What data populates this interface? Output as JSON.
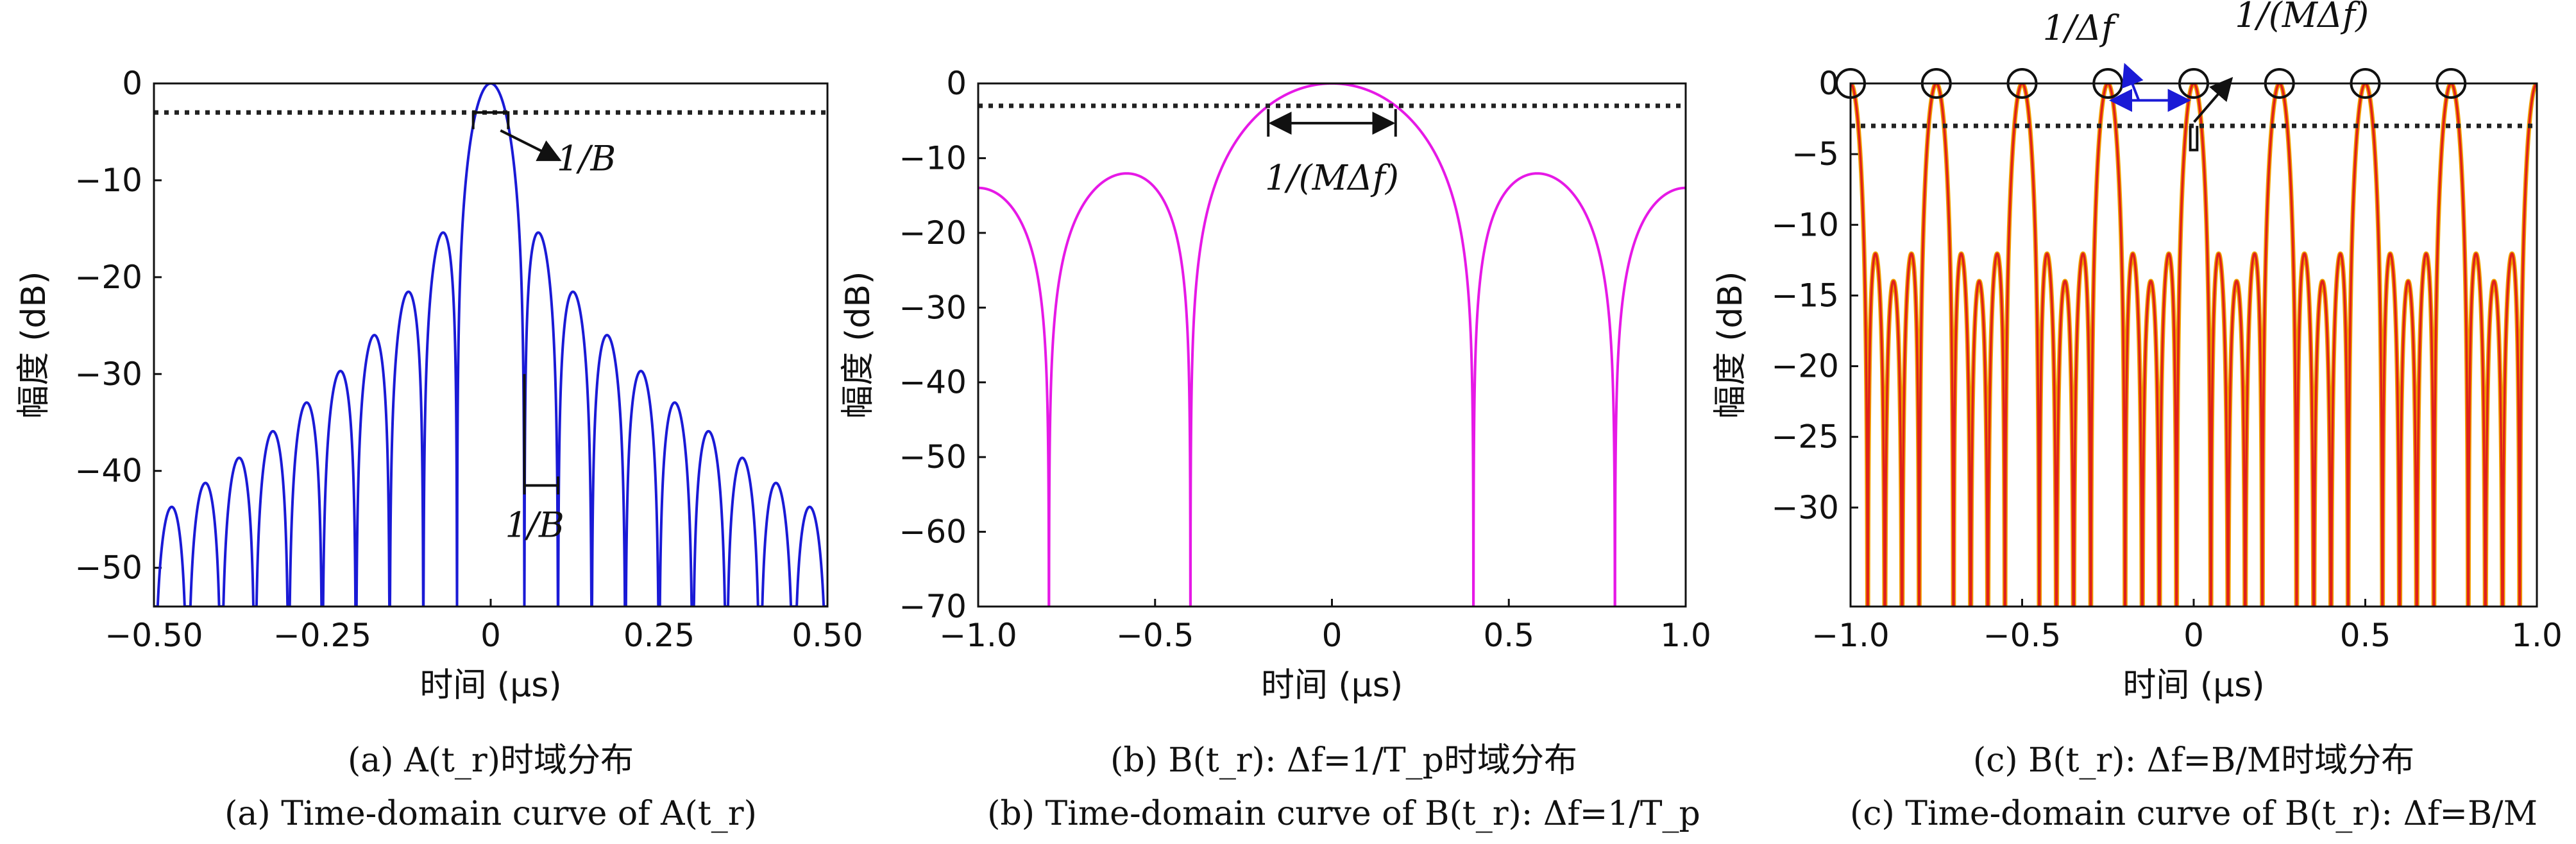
{
  "chart_data": [
    {
      "type": "line",
      "id": "a",
      "xlabel": "时间 (μs)",
      "ylabel": "幅度 (dB)",
      "xlim": [
        -0.5,
        0.5
      ],
      "ylim": [
        -54,
        0
      ],
      "xticks": [
        -0.5,
        -0.25,
        0,
        0.25,
        0.5
      ],
      "xtick_labels": [
        "−0.50",
        "−0.25",
        "0",
        "0.25",
        "0.50"
      ],
      "yticks": [
        0,
        -10,
        -20,
        -30,
        -40,
        -50
      ],
      "ytick_labels": [
        "0",
        "−10",
        "−20",
        "−30",
        "−40",
        "−50"
      ],
      "color": "#1a1ad6",
      "threshold_db": -3,
      "model": {
        "kind": "sinc",
        "B": 20,
        "envelope_db_per_us": 30,
        "floor_db": -54
      },
      "annotations": [
        {
          "label": "1/B",
          "x": 0.098,
          "y": -7
        },
        {
          "label": "1/B",
          "x": 0.075,
          "y": -41.5
        }
      ],
      "caption_cn": "(a) A(t_r)时域分布",
      "caption_en": "(a) Time-domain curve of A(t_r)"
    },
    {
      "type": "line",
      "id": "b",
      "xlabel": "时间 (μs)",
      "ylabel": "幅度 (dB)",
      "xlim": [
        -1.0,
        1.0
      ],
      "ylim": [
        -70,
        0
      ],
      "xticks": [
        -1.0,
        -0.5,
        0,
        0.5,
        1.0
      ],
      "xtick_labels": [
        "−1.0",
        "−0.5",
        "0",
        "0.5",
        "1.0"
      ],
      "yticks": [
        0,
        -10,
        -20,
        -30,
        -40,
        -50,
        -60,
        -70
      ],
      "ytick_labels": [
        "0",
        "−10",
        "−20",
        "−30",
        "−40",
        "−50",
        "−60",
        "−70"
      ],
      "color": "#e619e6",
      "threshold_db": -3,
      "model": {
        "kind": "periodic_sinc",
        "M": 5,
        "df": 0.5
      },
      "annotations": [
        {
          "label": "1/(MΔf)",
          "x": 0,
          "y": -12.5
        }
      ],
      "caption_cn": "(b) B(t_r): Δf=1/T_p时域分布",
      "caption_en": "(b) Time-domain curve of B(t_r): Δf=1/T_p"
    },
    {
      "type": "line",
      "id": "c",
      "xlabel": "时间 (μs)",
      "ylabel": "幅度 (dB)",
      "xlim": [
        -1.0,
        1.0
      ],
      "ylim": [
        -37,
        0
      ],
      "xticks": [
        -1.0,
        -0.5,
        0,
        0.5,
        1.0
      ],
      "xtick_labels": [
        "−1.0",
        "−0.5",
        "0",
        "0.5",
        "1.0"
      ],
      "yticks": [
        0,
        -5,
        -10,
        -15,
        -20,
        -25,
        -30
      ],
      "ytick_labels": [
        "0",
        "−5",
        "−10",
        "−15",
        "−20",
        "−25",
        "−30"
      ],
      "color": "#e0201a",
      "color_secondary": "#f0a000",
      "threshold_db": -3,
      "model": {
        "kind": "periodic_sinc",
        "M": 5,
        "df": 4
      },
      "peaks_x": [
        -1.0,
        -0.75,
        -0.5,
        -0.25,
        0,
        0.25,
        0.5,
        0.75
      ],
      "annotations": [
        {
          "label": "1/Δf",
          "x": -0.24,
          "y": -1.3,
          "color": "#1a1ad6"
        },
        {
          "label": "1/(MΔf)",
          "x": 0.15,
          "y": -1.3
        }
      ],
      "caption_cn": "(c) B(t_r): Δf=B/M时域分布",
      "caption_en": "(c) Time-domain curve of B(t_r): Δf=B/M"
    }
  ]
}
